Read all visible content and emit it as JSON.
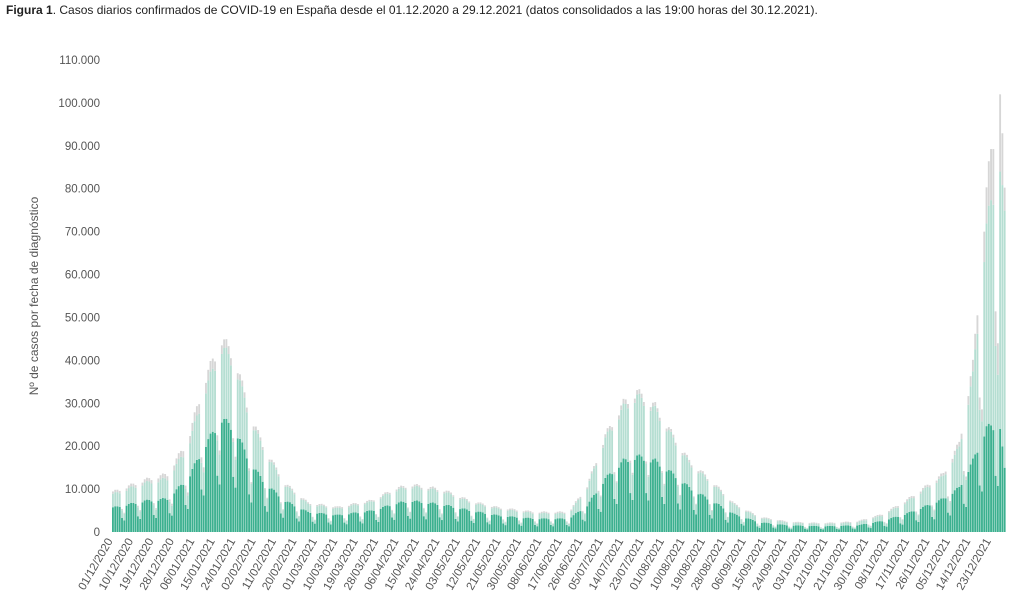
{
  "caption": {
    "label": "Figura 1",
    "text": ". Casos diarios confirmados de COVID-19 en España desde el 01.12.2020 a 29.12.2021  (datos consolidados a las 19:00 horas del 30.12.2021)."
  },
  "chart_data": {
    "type": "bar",
    "title": "Figura 1. Casos diarios confirmados de COVID-19 en España desde el 01.12.2020 a 29.12.2021  (datos consolidados a las 19:00 horas del 30.12.2021).",
    "xlabel": "",
    "ylabel": "Nº de casos por fecha de diagnóstico",
    "ylim": [
      0,
      110000
    ],
    "yticks": [
      "0",
      "10.000",
      "20.000",
      "30.000",
      "40.000",
      "50.000",
      "60.000",
      "70.000",
      "80.000",
      "90.000",
      "100.000",
      "110.000"
    ],
    "x_start": "2020-12-01",
    "x_end": "2021-12-29",
    "x_tick_labels": [
      "01/12/2020",
      "10/12/2020",
      "19/12/2020",
      "28/12/2020",
      "06/01/2021",
      "15/01/2021",
      "24/01/2021",
      "02/02/2021",
      "11/02/2021",
      "20/02/2021",
      "01/03/2021",
      "10/03/2021",
      "19/03/2021",
      "28/03/2021",
      "06/04/2021",
      "15/04/2021",
      "24/04/2021",
      "03/05/2021",
      "12/05/2021",
      "21/05/2021",
      "30/05/2021",
      "08/06/2021",
      "17/06/2021",
      "26/06/2021",
      "05/07/2021",
      "14/07/2021",
      "23/07/2021",
      "01/08/2021",
      "10/08/2021",
      "19/08/2021",
      "28/08/2021",
      "06/09/2021",
      "15/09/2021",
      "24/09/2021",
      "03/10/2021",
      "12/10/2021",
      "21/10/2021",
      "30/10/2021",
      "08/11/2021",
      "17/11/2021",
      "26/11/2021",
      "05/12/2021",
      "14/12/2021",
      "23/12/2021"
    ],
    "grid": false,
    "stacked": true,
    "series_colors": [
      "#3bb08f",
      "#b5ded2",
      "#d6d6d6"
    ],
    "series_anchors": [
      {
        "anchors": [
          [
            "2020-12-01",
            5500
          ],
          [
            "2020-12-15",
            7000
          ],
          [
            "2020-12-25",
            7500
          ],
          [
            "2021-01-03",
            12000
          ],
          [
            "2021-01-10",
            19000
          ],
          [
            "2021-01-18",
            25500
          ],
          [
            "2021-01-24",
            23000
          ],
          [
            "2021-01-30",
            16000
          ],
          [
            "2021-02-06",
            11000
          ],
          [
            "2021-02-15",
            7000
          ],
          [
            "2021-02-25",
            4500
          ],
          [
            "2021-03-10",
            3800
          ],
          [
            "2021-03-25",
            4800
          ],
          [
            "2021-04-05",
            6500
          ],
          [
            "2021-04-12",
            7000
          ],
          [
            "2021-04-25",
            6200
          ],
          [
            "2021-05-08",
            4800
          ],
          [
            "2021-05-20",
            3700
          ],
          [
            "2021-06-05",
            3000
          ],
          [
            "2021-06-20",
            3000
          ],
          [
            "2021-06-28",
            6000
          ],
          [
            "2021-07-06",
            12000
          ],
          [
            "2021-07-14",
            16000
          ],
          [
            "2021-07-20",
            17000
          ],
          [
            "2021-07-28",
            16000
          ],
          [
            "2021-08-05",
            13000
          ],
          [
            "2021-08-12",
            10000
          ],
          [
            "2021-08-22",
            7000
          ],
          [
            "2021-09-01",
            4000
          ],
          [
            "2021-09-12",
            2200
          ],
          [
            "2021-09-25",
            1500
          ],
          [
            "2021-10-10",
            1300
          ],
          [
            "2021-10-25",
            1500
          ],
          [
            "2021-11-05",
            2500
          ],
          [
            "2021-11-15",
            4000
          ],
          [
            "2021-11-25",
            6000
          ],
          [
            "2021-12-02",
            7500
          ],
          [
            "2021-12-09",
            10000
          ],
          [
            "2021-12-15",
            16000
          ],
          [
            "2021-12-21",
            23500
          ],
          [
            "2021-12-27",
            24000
          ],
          [
            "2021-12-29",
            14000
          ]
        ]
      },
      {
        "anchors": [
          [
            "2020-12-01",
            3000
          ],
          [
            "2020-12-15",
            4000
          ],
          [
            "2020-12-25",
            4500
          ],
          [
            "2021-01-03",
            7000
          ],
          [
            "2021-01-10",
            12000
          ],
          [
            "2021-01-18",
            16000
          ],
          [
            "2021-01-24",
            14500
          ],
          [
            "2021-01-30",
            10000
          ],
          [
            "2021-02-06",
            7000
          ],
          [
            "2021-02-15",
            3500
          ],
          [
            "2021-02-25",
            1800
          ],
          [
            "2021-03-10",
            1500
          ],
          [
            "2021-03-25",
            2000
          ],
          [
            "2021-04-05",
            3000
          ],
          [
            "2021-04-12",
            3200
          ],
          [
            "2021-04-25",
            3000
          ],
          [
            "2021-05-08",
            1800
          ],
          [
            "2021-05-20",
            1500
          ],
          [
            "2021-06-05",
            1200
          ],
          [
            "2021-06-20",
            1200
          ],
          [
            "2021-06-28",
            4000
          ],
          [
            "2021-07-06",
            9000
          ],
          [
            "2021-07-14",
            12000
          ],
          [
            "2021-07-20",
            13500
          ],
          [
            "2021-07-28",
            11500
          ],
          [
            "2021-08-05",
            8000
          ],
          [
            "2021-08-12",
            5500
          ],
          [
            "2021-08-22",
            4000
          ],
          [
            "2021-09-01",
            2000
          ],
          [
            "2021-09-12",
            1000
          ],
          [
            "2021-09-25",
            600
          ],
          [
            "2021-10-10",
            500
          ],
          [
            "2021-10-25",
            700
          ],
          [
            "2021-11-05",
            1200
          ],
          [
            "2021-11-15",
            2500
          ],
          [
            "2021-11-25",
            4000
          ],
          [
            "2021-12-02",
            5000
          ],
          [
            "2021-12-09",
            9000
          ],
          [
            "2021-12-15",
            19000
          ],
          [
            "2021-12-21",
            45000
          ],
          [
            "2021-12-27",
            60000
          ],
          [
            "2021-12-29",
            56000
          ]
        ]
      },
      {
        "anchors": [
          [
            "2020-12-01",
            500
          ],
          [
            "2020-12-15",
            700
          ],
          [
            "2020-12-25",
            1000
          ],
          [
            "2021-01-03",
            1500
          ],
          [
            "2021-01-10",
            2500
          ],
          [
            "2021-01-18",
            2000
          ],
          [
            "2021-01-24",
            1500
          ],
          [
            "2021-01-30",
            1000
          ],
          [
            "2021-02-06",
            600
          ],
          [
            "2021-02-15",
            400
          ],
          [
            "2021-02-25",
            300
          ],
          [
            "2021-03-10",
            300
          ],
          [
            "2021-03-25",
            300
          ],
          [
            "2021-04-05",
            400
          ],
          [
            "2021-04-12",
            400
          ],
          [
            "2021-04-25",
            400
          ],
          [
            "2021-05-08",
            300
          ],
          [
            "2021-05-20",
            300
          ],
          [
            "2021-06-05",
            300
          ],
          [
            "2021-06-20",
            300
          ],
          [
            "2021-06-28",
            400
          ],
          [
            "2021-07-06",
            700
          ],
          [
            "2021-07-14",
            1000
          ],
          [
            "2021-07-20",
            1000
          ],
          [
            "2021-07-28",
            800
          ],
          [
            "2021-08-05",
            600
          ],
          [
            "2021-08-12",
            500
          ],
          [
            "2021-08-22",
            400
          ],
          [
            "2021-09-01",
            300
          ],
          [
            "2021-09-12",
            200
          ],
          [
            "2021-09-25",
            200
          ],
          [
            "2021-10-10",
            200
          ],
          [
            "2021-10-25",
            200
          ],
          [
            "2021-11-05",
            300
          ],
          [
            "2021-11-15",
            400
          ],
          [
            "2021-11-25",
            500
          ],
          [
            "2021-12-02",
            600
          ],
          [
            "2021-12-09",
            1000
          ],
          [
            "2021-12-15",
            2500
          ],
          [
            "2021-12-21",
            8000
          ],
          [
            "2021-12-27",
            18000
          ],
          [
            "2021-12-29",
            5000
          ]
        ]
      }
    ],
    "weekday_factor": [
      1.0,
      1.05,
      1.07,
      1.05,
      1.0,
      0.55,
      0.45
    ]
  }
}
